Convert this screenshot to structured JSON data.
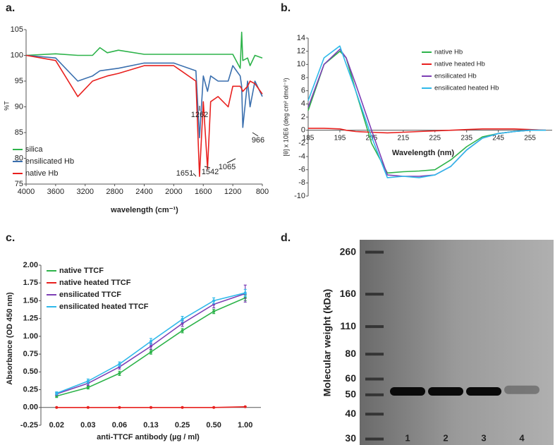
{
  "chart_data": [
    {
      "type": "line",
      "panel": "a.",
      "xlabel": "wavelength (cm⁻¹)",
      "ylabel": "%T",
      "legend": "lower left",
      "x": [
        4000,
        3600,
        3300,
        3100,
        3000,
        2900,
        2750,
        2400,
        2000,
        1700,
        1651,
        1600,
        1542,
        1500,
        1400,
        1262,
        1200,
        1100,
        1080,
        1065,
        1000,
        966,
        900,
        800
      ],
      "xlim": [
        4000,
        800
      ],
      "xticks": [
        4000,
        3600,
        3200,
        2800,
        2400,
        2000,
        1600,
        1200,
        800
      ],
      "ylim": [
        75,
        105
      ],
      "yticks": [
        75,
        80,
        85,
        90,
        95,
        100,
        105
      ],
      "series": [
        {
          "name": "silica",
          "color": "#2db34a",
          "values": [
            100,
            100.3,
            100,
            100,
            101.5,
            100.5,
            101,
            100.2,
            100.2,
            100.2,
            100.2,
            100.2,
            100.2,
            100.2,
            100.2,
            100.2,
            100.2,
            97.5,
            104.5,
            99,
            99.5,
            98,
            100,
            99.5
          ]
        },
        {
          "name": "ensilicated Hb",
          "color": "#3a6fae",
          "values": [
            100,
            99.5,
            95,
            96,
            97,
            97.2,
            97.5,
            98.5,
            98.5,
            97,
            84,
            96,
            93,
            96,
            95,
            95,
            98,
            96,
            94,
            86,
            95,
            90,
            95,
            92
          ]
        },
        {
          "name": "native Hb",
          "color": "#e8201e",
          "values": [
            100,
            99,
            92,
            95,
            95.5,
            96,
            96.5,
            98,
            98,
            95,
            76.5,
            91,
            78,
            91,
            92,
            90,
            94,
            94,
            93.5,
            93,
            94,
            95,
            94.5,
            92.5
          ]
        }
      ],
      "annotations": [
        "1651",
        "1542",
        "1262",
        "1065",
        "966"
      ]
    },
    {
      "type": "line",
      "panel": "b.",
      "xlabel": "Wavelength (nm)",
      "ylabel": "[θ] x 10E6 (deg cm² dmol⁻¹)",
      "legend": "right",
      "x": [
        185,
        190,
        195,
        197,
        200,
        205,
        210,
        215,
        220,
        225,
        230,
        235,
        240,
        245,
        250,
        255,
        260
      ],
      "xlim": [
        185,
        262
      ],
      "xticks": [
        185,
        195,
        205,
        215,
        225,
        235,
        245,
        255
      ],
      "ylim": [
        -10,
        14
      ],
      "yticks": [
        -10,
        -8,
        -6,
        -4,
        -2,
        0,
        2,
        4,
        6,
        8,
        10,
        12,
        14
      ],
      "series": [
        {
          "name": "native Hb",
          "color": "#2db34a",
          "values": [
            3,
            10,
            12,
            11,
            6,
            -2,
            -6.5,
            -6.3,
            -6.2,
            -6,
            -4.5,
            -2.5,
            -1,
            -0.5,
            -0.2,
            0,
            0
          ]
        },
        {
          "name": "native heated Hb",
          "color": "#e8201e",
          "values": [
            0.3,
            0.3,
            0.2,
            0,
            -0.2,
            -0.3,
            -0.4,
            -0.3,
            -0.2,
            -0.1,
            0,
            0.1,
            0.2,
            0.2,
            0.2,
            0.1,
            0
          ]
        },
        {
          "name": "ensilicated Hb",
          "color": "#7d3fb5",
          "values": [
            3.5,
            10,
            12.3,
            11,
            7,
            0,
            -6.8,
            -7,
            -7,
            -6.8,
            -5.5,
            -3,
            -1.2,
            -0.5,
            -0.2,
            0,
            0
          ]
        },
        {
          "name": "ensilicated heated Hb",
          "color": "#2fb9ea",
          "values": [
            4.5,
            11,
            12.8,
            10,
            6,
            -1,
            -7.2,
            -7,
            -7.2,
            -6.8,
            -5.5,
            -3,
            -1.2,
            -0.5,
            -0.2,
            0,
            0
          ]
        }
      ]
    },
    {
      "type": "errorline",
      "panel": "c.",
      "xlabel": "anti-TTCF antibody (µg / ml)",
      "ylabel": "Absorbance (OD 450 nm)",
      "legend": "upper left",
      "categories": [
        "0.02",
        "0.03",
        "0.06",
        "0.13",
        "0.25",
        "0.50",
        "1.00"
      ],
      "ylim": [
        -0.25,
        2
      ],
      "yticks": [
        {
          "value": -0.25,
          "label": "-0.25"
        },
        {
          "value": 0,
          "label": "0.00"
        },
        {
          "value": 0.25,
          "label": "0.25"
        },
        {
          "value": 0.5,
          "label": "0.50"
        },
        {
          "value": 0.75,
          "label": "0.75"
        },
        {
          "value": 1,
          "label": "1.00"
        },
        {
          "value": 1.25,
          "label": "1.25"
        },
        {
          "value": 1.5,
          "label": "1.50"
        },
        {
          "value": 1.75,
          "label": "1.75"
        },
        {
          "value": 2,
          "label": "2.00"
        }
      ],
      "series": [
        {
          "name": "native TTCF",
          "color": "#2db34a",
          "values": [
            0.16,
            0.28,
            0.48,
            0.78,
            1.08,
            1.35,
            1.54
          ],
          "errors": [
            0.02,
            0.02,
            0.03,
            0.03,
            0.03,
            0.03,
            0.04
          ]
        },
        {
          "name": "native heated TTCF",
          "color": "#e8201e",
          "values": [
            0,
            0,
            0,
            0,
            0,
            0,
            0.01
          ],
          "errors": [
            0,
            0,
            0,
            0,
            0,
            0,
            0
          ]
        },
        {
          "name": "ensilicated TTCF",
          "color": "#7d3fb5",
          "values": [
            0.19,
            0.34,
            0.57,
            0.86,
            1.18,
            1.45,
            1.6
          ],
          "errors": [
            0.02,
            0.03,
            0.03,
            0.04,
            0.04,
            0.05,
            0.12
          ]
        },
        {
          "name": "ensilicated heated TTCF",
          "color": "#2fb9ea",
          "values": [
            0.2,
            0.37,
            0.61,
            0.93,
            1.24,
            1.5,
            1.61
          ],
          "errors": [
            0.02,
            0.03,
            0.03,
            0.04,
            0.04,
            0.04,
            0.05
          ]
        }
      ]
    },
    {
      "type": "gel",
      "panel": "d.",
      "ylabel": "Molecular weight (kDa)",
      "log": true,
      "categories": [
        "1",
        "2",
        "3",
        "4"
      ],
      "values": [
        52,
        52,
        52,
        53
      ],
      "ylim": [
        28,
        300
      ],
      "yticks": [
        30,
        40,
        50,
        60,
        80,
        110,
        160,
        260
      ]
    }
  ]
}
